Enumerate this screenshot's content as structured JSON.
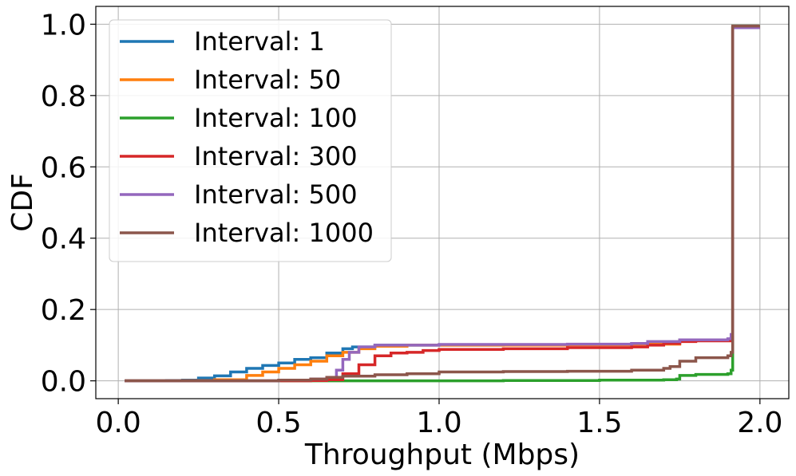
{
  "chart_data": {
    "type": "line",
    "title": "",
    "xlabel": "Throughput (Mbps)",
    "ylabel": "CDF",
    "xlim": [
      -0.07,
      2.09
    ],
    "ylim": [
      -0.05,
      1.05
    ],
    "x_ticks": [
      0.0,
      0.5,
      1.0,
      1.5,
      2.0
    ],
    "x_tick_labels": [
      "0.0",
      "0.5",
      "1.0",
      "1.5",
      "2.0"
    ],
    "y_ticks": [
      0.0,
      0.2,
      0.4,
      0.6,
      0.8,
      1.0
    ],
    "y_tick_labels": [
      "0.0",
      "0.2",
      "0.4",
      "0.6",
      "0.8",
      "1.0"
    ],
    "grid": true,
    "legend_position": "upper-left",
    "series": [
      {
        "name": "Interval: 1",
        "color": "#1f77b4",
        "points": [
          [
            0.02,
            0
          ],
          [
            0.15,
            0.001
          ],
          [
            0.2,
            0.002
          ],
          [
            0.25,
            0.008
          ],
          [
            0.3,
            0.014
          ],
          [
            0.35,
            0.025
          ],
          [
            0.4,
            0.035
          ],
          [
            0.45,
            0.043
          ],
          [
            0.5,
            0.05
          ],
          [
            0.55,
            0.06
          ],
          [
            0.6,
            0.065
          ],
          [
            0.65,
            0.078
          ],
          [
            0.7,
            0.09
          ],
          [
            0.73,
            0.095
          ],
          [
            0.8,
            0.1
          ],
          [
            1.0,
            0.1
          ],
          [
            1.2,
            0.101
          ],
          [
            1.4,
            0.102
          ],
          [
            1.6,
            0.105
          ],
          [
            1.75,
            0.115
          ],
          [
            1.91,
            0.12
          ],
          [
            1.915,
            0.99
          ],
          [
            2.0,
            0.99
          ]
        ]
      },
      {
        "name": "Interval: 50",
        "color": "#ff7f0e",
        "points": [
          [
            0.02,
            0
          ],
          [
            0.2,
            0.001
          ],
          [
            0.3,
            0.003
          ],
          [
            0.4,
            0.015
          ],
          [
            0.45,
            0.025
          ],
          [
            0.5,
            0.035
          ],
          [
            0.55,
            0.045
          ],
          [
            0.6,
            0.055
          ],
          [
            0.65,
            0.07
          ],
          [
            0.7,
            0.08
          ],
          [
            0.75,
            0.09
          ],
          [
            0.8,
            0.097
          ],
          [
            0.9,
            0.1
          ],
          [
            1.0,
            0.1
          ],
          [
            1.2,
            0.1
          ],
          [
            1.4,
            0.101
          ],
          [
            1.6,
            0.103
          ],
          [
            1.75,
            0.113
          ],
          [
            1.91,
            0.12
          ],
          [
            1.915,
            0.99
          ],
          [
            2.0,
            0.99
          ]
        ]
      },
      {
        "name": "Interval: 100",
        "color": "#2ca02c",
        "points": [
          [
            0.02,
            0
          ],
          [
            0.5,
            0.0
          ],
          [
            0.8,
            0.0
          ],
          [
            1.0,
            0.0
          ],
          [
            1.2,
            0.001
          ],
          [
            1.5,
            0.002
          ],
          [
            1.7,
            0.003
          ],
          [
            1.74,
            0.005
          ],
          [
            1.75,
            0.015
          ],
          [
            1.8,
            0.018
          ],
          [
            1.9,
            0.02
          ],
          [
            1.91,
            0.03
          ],
          [
            1.915,
            0.995
          ],
          [
            2.0,
            0.995
          ]
        ]
      },
      {
        "name": "Interval: 300",
        "color": "#d62728",
        "points": [
          [
            0.02,
            0
          ],
          [
            0.3,
            0.0
          ],
          [
            0.5,
            0.0
          ],
          [
            0.6,
            0.001
          ],
          [
            0.65,
            0.003
          ],
          [
            0.7,
            0.02
          ],
          [
            0.75,
            0.045
          ],
          [
            0.8,
            0.07
          ],
          [
            0.85,
            0.078
          ],
          [
            0.9,
            0.08
          ],
          [
            0.95,
            0.085
          ],
          [
            1.0,
            0.088
          ],
          [
            1.2,
            0.09
          ],
          [
            1.4,
            0.093
          ],
          [
            1.6,
            0.095
          ],
          [
            1.65,
            0.1
          ],
          [
            1.7,
            0.105
          ],
          [
            1.75,
            0.11
          ],
          [
            1.8,
            0.112
          ],
          [
            1.91,
            0.115
          ],
          [
            1.915,
            0.99
          ],
          [
            2.0,
            0.99
          ]
        ]
      },
      {
        "name": "Interval: 500",
        "color": "#9467bd",
        "points": [
          [
            0.02,
            0
          ],
          [
            0.3,
            0.0
          ],
          [
            0.5,
            0.002
          ],
          [
            0.6,
            0.005
          ],
          [
            0.65,
            0.01
          ],
          [
            0.68,
            0.03
          ],
          [
            0.7,
            0.06
          ],
          [
            0.72,
            0.08
          ],
          [
            0.75,
            0.095
          ],
          [
            0.8,
            0.1
          ],
          [
            1.0,
            0.102
          ],
          [
            1.2,
            0.102
          ],
          [
            1.4,
            0.103
          ],
          [
            1.6,
            0.105
          ],
          [
            1.65,
            0.11
          ],
          [
            1.75,
            0.115
          ],
          [
            1.9,
            0.118
          ],
          [
            1.91,
            0.13
          ],
          [
            1.915,
            0.99
          ],
          [
            2.0,
            0.99
          ]
        ]
      },
      {
        "name": "Interval: 1000",
        "color": "#8c564b",
        "points": [
          [
            0.02,
            0
          ],
          [
            0.3,
            0.0
          ],
          [
            0.5,
            0.002
          ],
          [
            0.6,
            0.005
          ],
          [
            0.65,
            0.01
          ],
          [
            0.7,
            0.013
          ],
          [
            0.8,
            0.017
          ],
          [
            0.9,
            0.02
          ],
          [
            1.0,
            0.025
          ],
          [
            1.2,
            0.026
          ],
          [
            1.4,
            0.027
          ],
          [
            1.6,
            0.03
          ],
          [
            1.7,
            0.035
          ],
          [
            1.72,
            0.04
          ],
          [
            1.75,
            0.055
          ],
          [
            1.8,
            0.065
          ],
          [
            1.9,
            0.07
          ],
          [
            1.91,
            0.08
          ],
          [
            1.915,
            0.995
          ],
          [
            2.0,
            0.995
          ]
        ]
      }
    ]
  }
}
